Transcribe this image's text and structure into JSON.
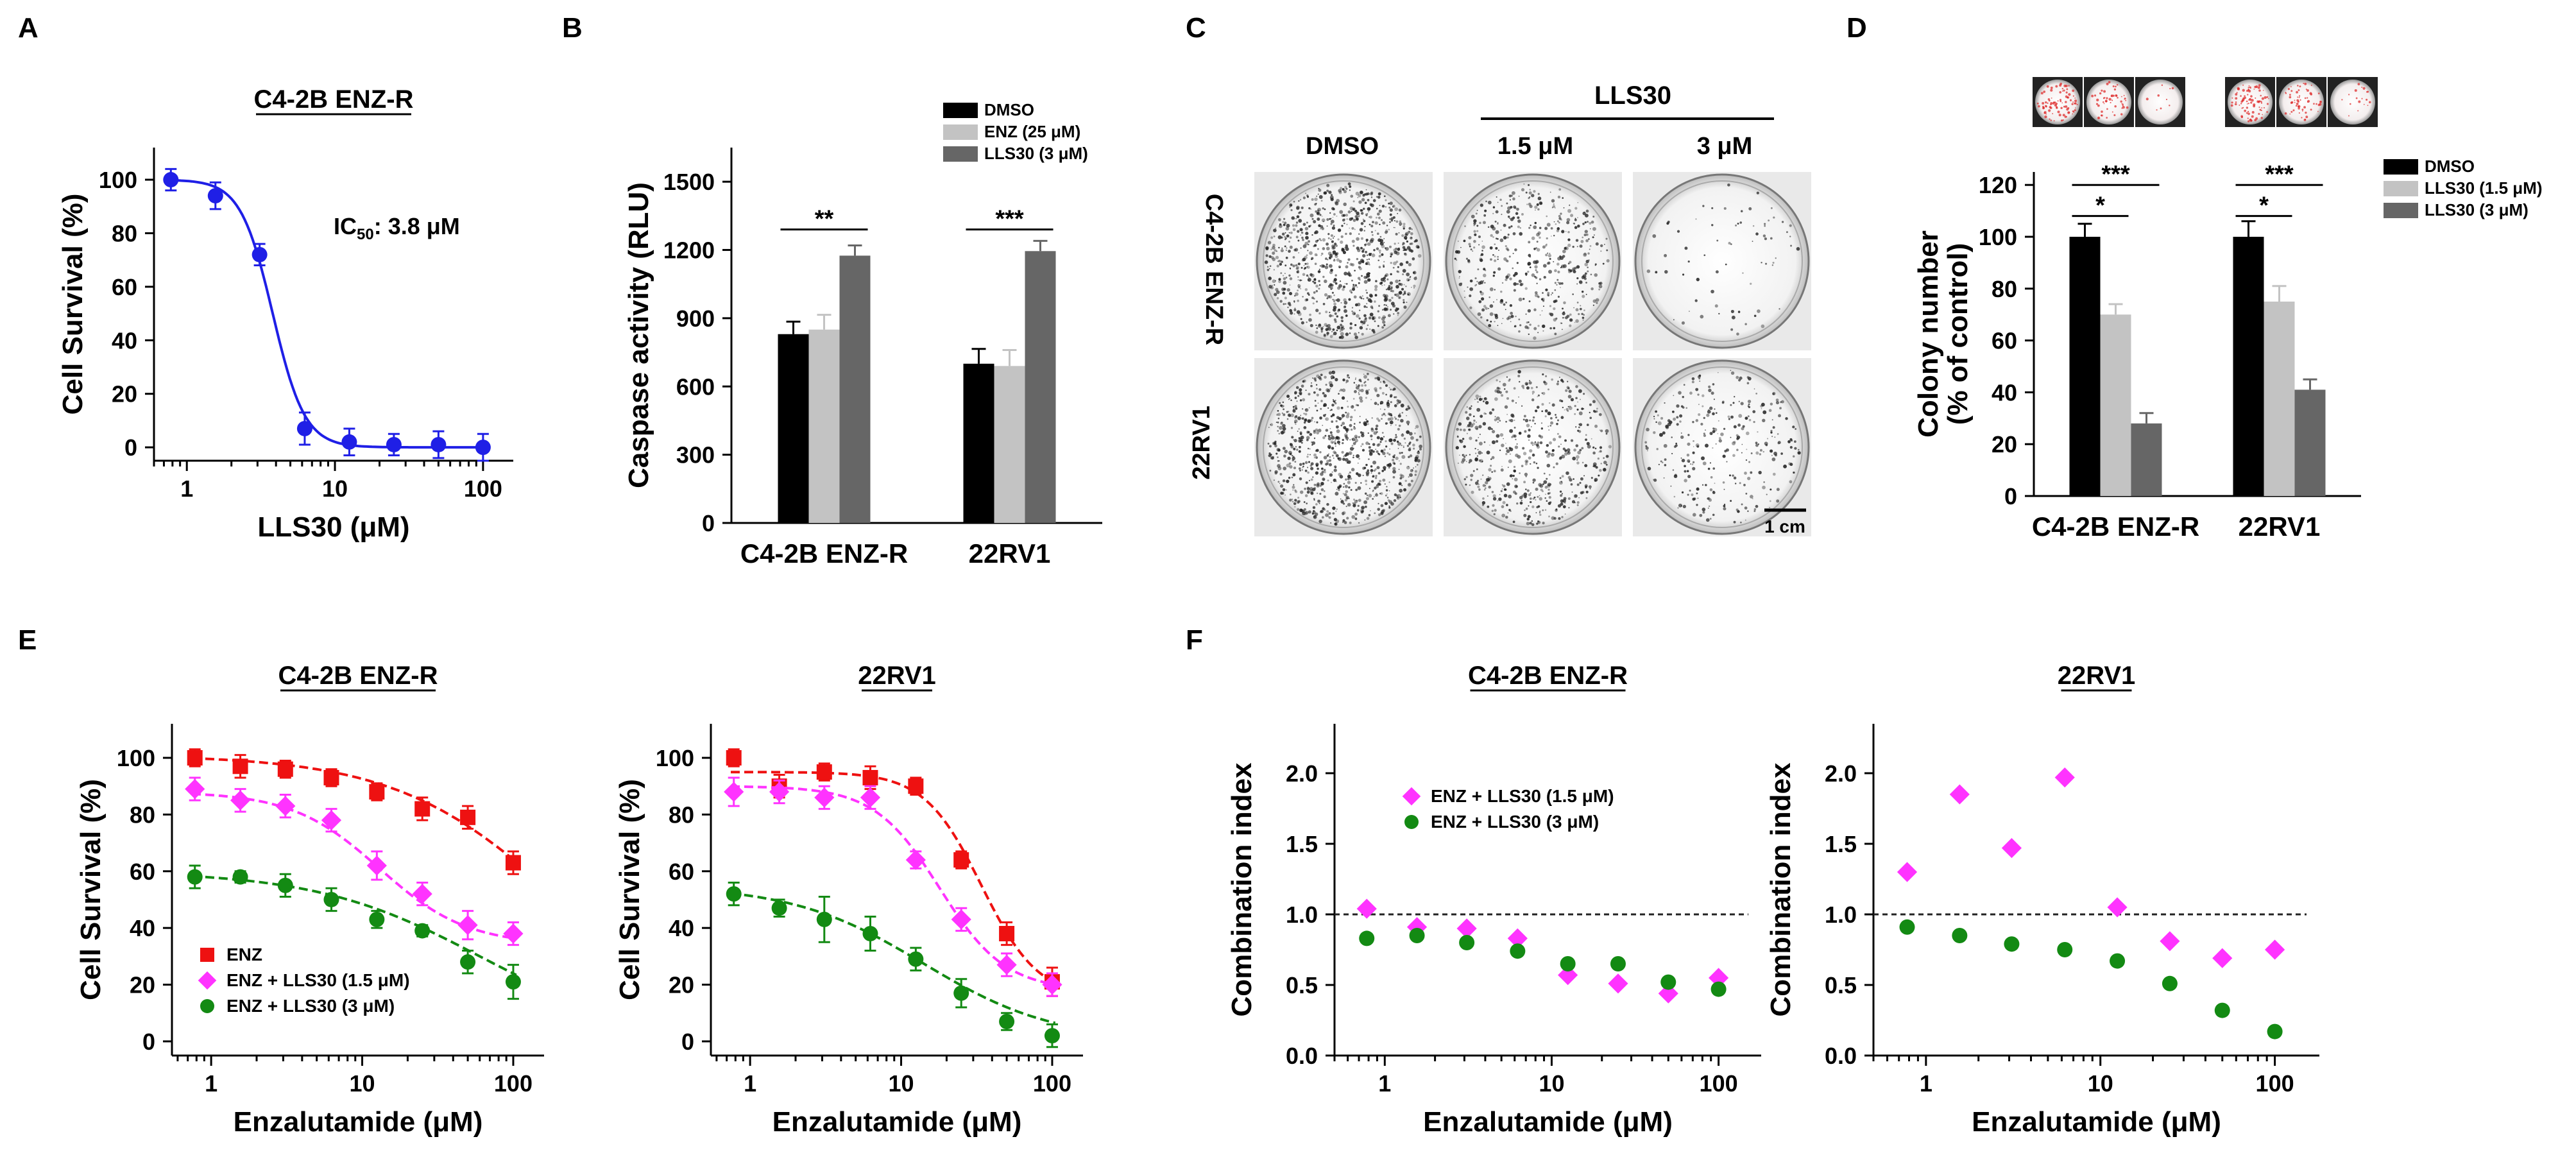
{
  "figure": {
    "panel_labels": [
      "A",
      "B",
      "C",
      "D",
      "E",
      "F"
    ],
    "scale_bar_label": "1 cm"
  },
  "colors": {
    "blue": "#1f1fe6",
    "red": "#ee1111",
    "magenta": "#ff33ff",
    "green": "#138a13",
    "black": "#000000",
    "lightgray": "#c3c3c3",
    "darkgray": "#666666"
  },
  "panelC": {
    "header": "LLS30",
    "columns": [
      "DMSO",
      "1.5 μM",
      "3 μM"
    ],
    "rows": [
      "C4-2B ENZ-R",
      "22RV1"
    ],
    "densities": [
      [
        1.0,
        0.55,
        0.08
      ],
      [
        1.0,
        0.62,
        0.35
      ]
    ]
  },
  "chart_data": [
    {
      "id": "A",
      "type": "scatter",
      "title": "C4-2B ENZ-R",
      "xlabel": "LLS30 (μM)",
      "ylabel": "Cell Survival (%)",
      "xscale": "log",
      "xlim": [
        0.6,
        160
      ],
      "ylim": [
        -5,
        112
      ],
      "xticks": [
        1,
        10,
        100
      ],
      "xticklabels": [
        "1",
        "10",
        "100"
      ],
      "yticks": [
        0,
        20,
        40,
        60,
        80,
        100
      ],
      "annotation": {
        "text": "IC",
        "sub": "50",
        "rest": ": 3.8 μM"
      },
      "series": [
        {
          "name": "LLS30",
          "color": "#1f1fe6",
          "marker": "circle",
          "x": [
            0.78,
            1.56,
            3.1,
            6.25,
            12.5,
            25,
            50,
            100
          ],
          "y": [
            100,
            94,
            72,
            7,
            2,
            1,
            1,
            0
          ],
          "err": [
            4,
            5,
            4,
            6,
            5,
            4,
            5,
            5
          ],
          "fit": {
            "top": 100,
            "bottom": 0,
            "ic50": 3.8,
            "hill": 4
          }
        }
      ]
    },
    {
      "id": "B",
      "type": "bar",
      "ylabel": "Caspase activity (RLU)",
      "ylim": [
        0,
        1650
      ],
      "yticks": [
        0,
        300,
        600,
        900,
        1200,
        1500
      ],
      "categories": [
        "C4-2B ENZ-R",
        "22RV1"
      ],
      "series": [
        {
          "name": "DMSO",
          "color": "#000000",
          "values": [
            830,
            700
          ],
          "err": [
            55,
            65
          ]
        },
        {
          "name": "ENZ (25 μM)",
          "color": "#c3c3c3",
          "values": [
            850,
            690
          ],
          "err": [
            65,
            70
          ]
        },
        {
          "name": "LLS30 (3 μM)",
          "color": "#666666",
          "values": [
            1175,
            1195
          ],
          "err": [
            45,
            45
          ]
        }
      ],
      "significance": [
        {
          "group": 0,
          "from": 0,
          "to": 2,
          "label": "**",
          "level": 1290
        },
        {
          "group": 1,
          "from": 0,
          "to": 2,
          "label": "***",
          "level": 1290
        }
      ]
    },
    {
      "id": "D",
      "type": "bar",
      "ylabel": "Colony number",
      "ylabel2": "(% of control)",
      "ylim": [
        0,
        125
      ],
      "yticks": [
        0,
        20,
        40,
        60,
        80,
        100,
        120
      ],
      "categories": [
        "C4-2B ENZ-R",
        "22RV1"
      ],
      "series": [
        {
          "name": "DMSO",
          "color": "#000000",
          "values": [
            100,
            100
          ],
          "err": [
            5,
            6
          ]
        },
        {
          "name": "LLS30 (1.5 μM)",
          "color": "#c3c3c3",
          "values": [
            70,
            75
          ],
          "err": [
            4,
            6
          ]
        },
        {
          "name": "LLS30 (3 μM)",
          "color": "#666666",
          "values": [
            28,
            41
          ],
          "err": [
            4,
            4
          ]
        }
      ],
      "significance": [
        {
          "group": 0,
          "from": 0,
          "to": 1,
          "label": "*",
          "level": 108
        },
        {
          "group": 0,
          "from": 0,
          "to": 2,
          "label": "***",
          "level": 120
        },
        {
          "group": 1,
          "from": 0,
          "to": 1,
          "label": "*",
          "level": 108
        },
        {
          "group": 1,
          "from": 0,
          "to": 2,
          "label": "***",
          "level": 120
        }
      ]
    },
    {
      "id": "E1",
      "type": "scatter",
      "title": "C4-2B ENZ-R",
      "xlabel": "Enzalutamide (μM)",
      "ylabel": "Cell Survival (%)",
      "xscale": "log",
      "xlim": [
        0.55,
        160
      ],
      "ylim": [
        -5,
        112
      ],
      "xticks": [
        1,
        10,
        100
      ],
      "xticklabels": [
        "1",
        "10",
        "100"
      ],
      "yticks": [
        0,
        20,
        40,
        60,
        80,
        100
      ],
      "legend": "bottom-left",
      "series": [
        {
          "name": "ENZ",
          "color": "#ee1111",
          "marker": "square",
          "x": [
            0.78,
            1.56,
            3.1,
            6.25,
            12.5,
            25,
            50,
            100
          ],
          "y": [
            100,
            97,
            96,
            93,
            88,
            82,
            79,
            63
          ],
          "err": [
            3,
            4,
            3,
            3,
            3,
            4,
            4,
            4
          ],
          "fit": {
            "top": 101,
            "bottom": 0,
            "ic50": 200,
            "hill": 0.8
          }
        },
        {
          "name": "ENZ + LLS30 (1.5 μM)",
          "color": "#ff33ff",
          "marker": "diamond",
          "x": [
            0.78,
            1.56,
            3.1,
            6.25,
            12.5,
            25,
            50,
            100
          ],
          "y": [
            89,
            85,
            83,
            78,
            62,
            52,
            41,
            38
          ],
          "err": [
            4,
            4,
            4,
            4,
            5,
            4,
            5,
            4
          ],
          "fit": {
            "top": 88,
            "bottom": 34,
            "ic50": 13,
            "hill": 1.5
          }
        },
        {
          "name": "ENZ + LLS30 (3 μM)",
          "color": "#138a13",
          "marker": "circle",
          "x": [
            0.78,
            1.56,
            3.1,
            6.25,
            12.5,
            25,
            50,
            100
          ],
          "y": [
            58,
            58,
            55,
            50,
            43,
            39,
            28,
            21
          ],
          "err": [
            4,
            2,
            4,
            4,
            3,
            2,
            4,
            6
          ],
          "fit": {
            "top": 60,
            "bottom": 0,
            "ic50": 60,
            "hill": 0.8
          }
        }
      ]
    },
    {
      "id": "E2",
      "type": "scatter",
      "title": "22RV1",
      "xlabel": "Enzalutamide (μM)",
      "ylabel": "Cell Survival (%)",
      "xscale": "log",
      "xlim": [
        0.55,
        160
      ],
      "ylim": [
        -5,
        112
      ],
      "xticks": [
        1,
        10,
        100
      ],
      "xticklabels": [
        "1",
        "10",
        "100"
      ],
      "yticks": [
        0,
        20,
        40,
        60,
        80,
        100
      ],
      "series": [
        {
          "name": "ENZ",
          "color": "#ee1111",
          "marker": "square",
          "x": [
            0.78,
            1.56,
            3.1,
            6.25,
            12.5,
            25,
            50,
            100
          ],
          "y": [
            100,
            90,
            95,
            93,
            90,
            64,
            38,
            21
          ],
          "err": [
            3,
            4,
            3,
            4,
            3,
            3,
            4,
            5
          ],
          "fit": {
            "top": 95,
            "bottom": 15,
            "ic50": 34,
            "hill": 2.3
          }
        },
        {
          "name": "ENZ + LLS30 (1.5 μM)",
          "color": "#ff33ff",
          "marker": "diamond",
          "x": [
            0.78,
            1.56,
            3.1,
            6.25,
            12.5,
            25,
            50,
            100
          ],
          "y": [
            88,
            88,
            86,
            86,
            64,
            43,
            27,
            20
          ],
          "err": [
            5,
            4,
            4,
            4,
            3,
            4,
            4,
            4
          ],
          "fit": {
            "top": 90,
            "bottom": 18,
            "ic50": 18,
            "hill": 2
          }
        },
        {
          "name": "ENZ + LLS30 (3 μM)",
          "color": "#138a13",
          "marker": "circle",
          "x": [
            0.78,
            1.56,
            3.1,
            6.25,
            12.5,
            25,
            50,
            100
          ],
          "y": [
            52,
            47,
            43,
            38,
            29,
            17,
            7,
            2
          ],
          "err": [
            4,
            3,
            8,
            6,
            4,
            5,
            3,
            4
          ],
          "fit": {
            "top": 55,
            "bottom": 0,
            "ic50": 14,
            "hill": 1
          }
        }
      ]
    },
    {
      "id": "F1",
      "type": "scatter",
      "title": "C4-2B ENZ-R",
      "xlabel": "Enzalutamide (μM)",
      "ylabel": "Combination index",
      "xscale": "log",
      "xlim": [
        0.5,
        180
      ],
      "ylim": [
        0,
        2.35
      ],
      "xticks": [
        1,
        10,
        100
      ],
      "xticklabels": [
        "1",
        "10",
        "100"
      ],
      "yticks": [
        0,
        0.5,
        1.0,
        1.5,
        2.0
      ],
      "yticklabels": [
        "0.0",
        "0.5",
        "1.0",
        "1.5",
        "2.0"
      ],
      "reference_line": 1.0,
      "legend": "top-left",
      "series": [
        {
          "name": "ENZ + LLS30 (1.5 μM)",
          "color": "#ff33ff",
          "marker": "diamond",
          "x": [
            0.78,
            1.56,
            3.1,
            6.25,
            12.5,
            25,
            50,
            100
          ],
          "y": [
            1.04,
            0.91,
            0.9,
            0.83,
            0.57,
            0.51,
            0.44,
            0.55
          ]
        },
        {
          "name": "ENZ + LLS30 (3 μM)",
          "color": "#138a13",
          "marker": "circle",
          "x": [
            0.78,
            1.56,
            3.1,
            6.25,
            12.5,
            25,
            50,
            100
          ],
          "y": [
            0.83,
            0.85,
            0.8,
            0.74,
            0.65,
            0.65,
            0.52,
            0.47
          ]
        }
      ]
    },
    {
      "id": "F2",
      "type": "scatter",
      "title": "22RV1",
      "xlabel": "Enzalutamide (μM)",
      "ylabel": "Combination index",
      "xscale": "log",
      "xlim": [
        0.5,
        180
      ],
      "ylim": [
        0,
        2.35
      ],
      "xticks": [
        1,
        10,
        100
      ],
      "xticklabels": [
        "1",
        "10",
        "100"
      ],
      "yticks": [
        0,
        0.5,
        1.0,
        1.5,
        2.0
      ],
      "yticklabels": [
        "0.0",
        "0.5",
        "1.0",
        "1.5",
        "2.0"
      ],
      "reference_line": 1.0,
      "series": [
        {
          "name": "ENZ + LLS30 (1.5 μM)",
          "color": "#ff33ff",
          "marker": "diamond",
          "x": [
            0.78,
            1.56,
            3.1,
            6.25,
            12.5,
            25,
            50,
            100
          ],
          "y": [
            1.3,
            1.85,
            1.47,
            1.97,
            1.05,
            0.81,
            0.69,
            0.75
          ]
        },
        {
          "name": "ENZ + LLS30 (3 μM)",
          "color": "#138a13",
          "marker": "circle",
          "x": [
            0.78,
            1.56,
            3.1,
            6.25,
            12.5,
            25,
            50,
            100
          ],
          "y": [
            0.91,
            0.85,
            0.79,
            0.75,
            0.67,
            0.51,
            0.32,
            0.17
          ]
        }
      ]
    }
  ]
}
